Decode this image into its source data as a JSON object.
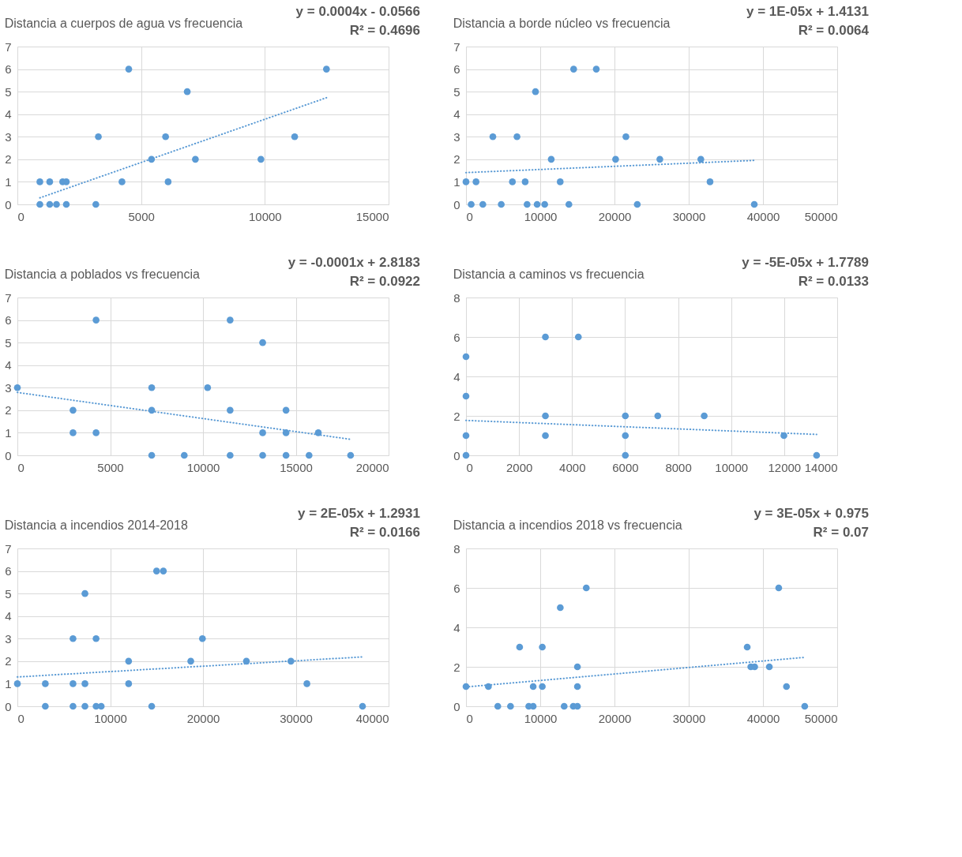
{
  "chart_data": [
    {
      "type": "scatter",
      "title": "Distancia a cuerpos de agua vs frecuencia",
      "annotations": [
        "y = 0.0004x - 0.0566",
        "R² = 0.4696"
      ],
      "xlim": [
        0,
        15000
      ],
      "xticks": [
        0,
        5000,
        10000,
        15000
      ],
      "ylim": [
        0,
        7
      ],
      "yticks": [
        0,
        1,
        2,
        3,
        4,
        5,
        6,
        7
      ],
      "grid": true,
      "series": [
        {
          "color": "#5b9bd5",
          "marker": "circle",
          "x": [
            909,
            1307,
            1830,
            1977,
            4227,
            6091,
            909,
            1307,
            1580,
            1977,
            3170,
            3273,
            5989,
            11205,
            5420,
            7193,
            9841,
            4500,
            12489,
            6864
          ],
          "values": [
            1,
            1,
            1,
            1,
            1,
            1,
            0,
            0,
            0,
            0,
            0,
            3,
            3,
            3,
            2,
            2,
            2,
            6,
            6,
            5
          ]
        },
        {
          "type": "line",
          "line_style": "dotted",
          "color": "#5b9bd5",
          "x": [
            909,
            12489
          ],
          "values": [
            0.29,
            4.73
          ]
        }
      ]
    },
    {
      "type": "scatter",
      "title": "Distancia a borde núcleo vs frecuencia",
      "annotations": [
        "y = 1E-05x + 1.4131",
        "R² = 0.0064"
      ],
      "xlim": [
        0,
        50000
      ],
      "xticks": [
        0,
        10000,
        20000,
        30000,
        40000,
        50000
      ],
      "ylim": [
        0,
        7
      ],
      "yticks": [
        0,
        1,
        2,
        3,
        4,
        5,
        6,
        7
      ],
      "grid": true,
      "series": [
        {
          "color": "#5b9bd5",
          "marker": "circle",
          "x": [
            0,
            1350,
            6250,
            7970,
            12690,
            32870,
            700,
            2270,
            4750,
            8230,
            9580,
            10600,
            13860,
            23070,
            38830,
            3620,
            6870,
            21540,
            11480,
            20150,
            26110,
            31630,
            14500,
            17550,
            9360
          ],
          "values": [
            1,
            1,
            1,
            1,
            1,
            1,
            0,
            0,
            0,
            0,
            0,
            0,
            0,
            0,
            0,
            3,
            3,
            3,
            2,
            2,
            2,
            2,
            6,
            6,
            5
          ]
        },
        {
          "type": "line",
          "line_style": "dotted",
          "color": "#5b9bd5",
          "x": [
            0,
            38830
          ],
          "values": [
            1.41,
            1.95
          ]
        }
      ]
    },
    {
      "type": "scatter",
      "title": "Distancia a poblados vs frecuencia",
      "annotations": [
        "y = -0.0001x + 2.8183",
        "R² = 0.0922"
      ],
      "xlim": [
        0,
        20000
      ],
      "xticks": [
        0,
        5000,
        10000,
        15000,
        20000
      ],
      "ylim": [
        0,
        7
      ],
      "yticks": [
        0,
        1,
        2,
        3,
        4,
        5,
        6,
        7
      ],
      "grid": true,
      "series": [
        {
          "color": "#5b9bd5",
          "marker": "circle",
          "x": [
            0,
            2997,
            2997,
            4240,
            4240,
            7237,
            7237,
            7237,
            8991,
            10249,
            11462,
            11462,
            11462,
            13216,
            13216,
            13216,
            14474,
            14474,
            14474,
            15716,
            16213,
            17953
          ],
          "values": [
            3,
            2,
            1,
            1,
            6,
            3,
            2,
            0,
            0,
            3,
            6,
            2,
            0,
            5,
            1,
            0,
            2,
            1,
            0,
            0,
            1,
            0
          ]
        },
        {
          "type": "line",
          "line_style": "dotted",
          "color": "#5b9bd5",
          "x": [
            0,
            17953
          ],
          "values": [
            2.79,
            0.71
          ]
        }
      ]
    },
    {
      "type": "scatter",
      "title": "Distancia a caminos vs frecuencia",
      "annotations": [
        "y = -5E-05x + 1.7789",
        "R² = 0.0133"
      ],
      "xlim": [
        0,
        14000
      ],
      "xticks": [
        0,
        2000,
        4000,
        6000,
        8000,
        10000,
        12000,
        14000
      ],
      "ylim": [
        0,
        8
      ],
      "yticks": [
        0,
        2,
        4,
        6,
        8
      ],
      "grid": true,
      "series": [
        {
          "color": "#5b9bd5",
          "marker": "circle",
          "x": [
            0,
            0,
            0,
            0,
            2995,
            2995,
            2995,
            4238,
            6010,
            6010,
            6010,
            7233,
            8984,
            11990,
            13223
          ],
          "values": [
            5,
            3,
            1,
            0,
            6,
            2,
            1,
            6,
            2,
            1,
            0,
            2,
            2,
            1,
            0
          ]
        },
        {
          "type": "line",
          "line_style": "dotted",
          "color": "#5b9bd5",
          "x": [
            0,
            13223
          ],
          "values": [
            1.77,
            1.06
          ]
        }
      ]
    },
    {
      "type": "scatter",
      "title": "Distancia a incendios 2014-2018",
      "annotations": [
        "y = 2E-05x + 1.2931",
        "R² = 0.0166"
      ],
      "xlim": [
        0,
        40000
      ],
      "xticks": [
        0,
        10000,
        20000,
        30000,
        40000
      ],
      "ylim": [
        0,
        7
      ],
      "yticks": [
        0,
        1,
        2,
        3,
        4,
        5,
        6,
        7
      ],
      "grid": true,
      "series": [
        {
          "color": "#5b9bd5",
          "marker": "circle",
          "x": [
            0,
            3010,
            3010,
            5994,
            5994,
            5994,
            7281,
            7281,
            7281,
            8480,
            8480,
            9035,
            11988,
            11988,
            14474,
            15000,
            15731,
            18684,
            19942,
            24678,
            29474,
            31199,
            37193
          ],
          "values": [
            1,
            1,
            0,
            3,
            1,
            0,
            5,
            1,
            0,
            3,
            0,
            0,
            2,
            1,
            0,
            6,
            6,
            2,
            3,
            2,
            2,
            1,
            0
          ]
        },
        {
          "type": "line",
          "line_style": "dotted",
          "color": "#5b9bd5",
          "x": [
            0,
            37193
          ],
          "values": [
            1.3,
            2.19
          ]
        }
      ]
    },
    {
      "type": "scatter",
      "title": "Distancia a incendios 2018 vs frecuencia",
      "annotations": [
        "y = 3E-05x + 0.975",
        "R² = 0.07"
      ],
      "xlim": [
        0,
        50000
      ],
      "xticks": [
        0,
        10000,
        20000,
        30000,
        40000,
        50000
      ],
      "ylim": [
        0,
        8
      ],
      "yticks": [
        0,
        2,
        4,
        6,
        8
      ],
      "grid": true,
      "series": [
        {
          "color": "#5b9bd5",
          "marker": "circle",
          "x": [
            0,
            3017,
            4283,
            5996,
            7225,
            8454,
            9050,
            9050,
            10279,
            10279,
            12700,
            13222,
            14451,
            15010,
            15010,
            15010,
            16201,
            37877,
            38361,
            38883,
            40857,
            42123,
            43166,
            45624
          ],
          "values": [
            1,
            1,
            0,
            0,
            3,
            0,
            1,
            0,
            3,
            1,
            5,
            0,
            0,
            2,
            1,
            0,
            6,
            3,
            2,
            2,
            2,
            6,
            1,
            0
          ]
        },
        {
          "type": "line",
          "line_style": "dotted",
          "color": "#5b9bd5",
          "x": [
            0,
            45624
          ],
          "values": [
            0.98,
            2.48
          ]
        }
      ]
    }
  ]
}
